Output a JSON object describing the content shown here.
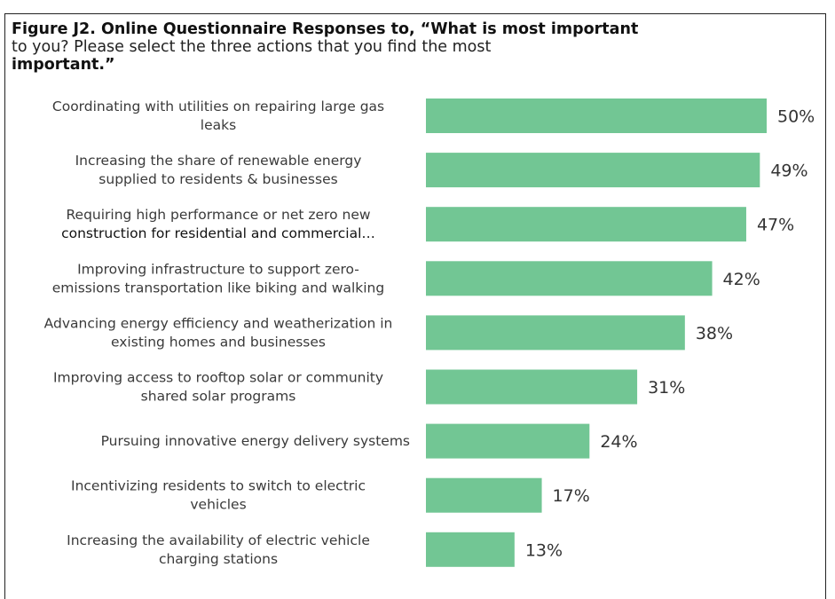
{
  "title": {
    "line1_bold": "Figure J2. Online Questionnaire Responses to, “What is most important",
    "line2": "to you? Please select the three actions that you find the most",
    "line3_bold": "important.”"
  },
  "colors": {
    "bar": "#72c694",
    "frame": "#222222"
  },
  "chart_data": {
    "type": "bar",
    "orientation": "horizontal",
    "title": "Figure J2. Online Questionnaire Responses to, “What is most important to you? Please select the three actions that you find the most important.”",
    "categories": [
      [
        "Coordinating with utilities on repairing large gas",
        "leaks"
      ],
      [
        "Increasing the share of renewable energy",
        "supplied to residents & businesses"
      ],
      [
        "Requiring high performance or net zero new",
        "construction for residential and commercial…"
      ],
      [
        "Improving infrastructure to support zero-",
        "emissions transportation like biking and walking"
      ],
      [
        "Advancing energy efficiency and weatherization in",
        "existing homes and businesses"
      ],
      [
        "Improving access to rooftop solar or community",
        "shared solar programs"
      ],
      [
        "Pursuing innovative energy delivery systems"
      ],
      [
        "Incentivizing residents to switch to electric",
        "vehicles"
      ],
      [
        "Increasing the availability of electric vehicle",
        "charging stations"
      ]
    ],
    "values": [
      50,
      49,
      47,
      42,
      38,
      31,
      24,
      17,
      13
    ],
    "value_labels": [
      "50%",
      "49%",
      "47%",
      "42%",
      "38%",
      "31%",
      "24%",
      "17%",
      "13%"
    ],
    "xlim": [
      0,
      50
    ],
    "grid": false,
    "legend": false
  }
}
